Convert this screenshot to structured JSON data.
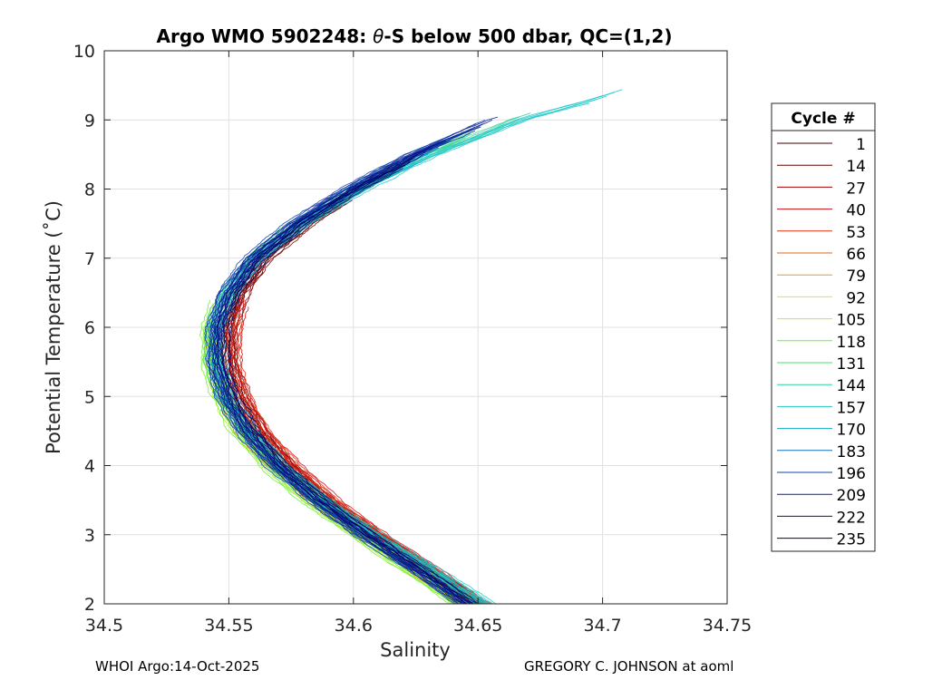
{
  "chart_data": {
    "type": "line",
    "title_prefix": "Argo WMO 5902248: ",
    "title_symbol": "θ",
    "title_suffix": "-S below 500 dbar,  QC=(1,2)",
    "xlabel": "Salinity",
    "ylabel": "Potential Temperature (˚C)",
    "xlim": [
      34.5,
      34.75
    ],
    "ylim": [
      2,
      10
    ],
    "xticks": [
      34.5,
      34.55,
      34.6,
      34.65,
      34.7,
      34.75
    ],
    "xtick_labels": [
      "34.5",
      "34.55",
      "34.6",
      "34.65",
      "34.7",
      "34.75"
    ],
    "yticks": [
      2,
      3,
      4,
      5,
      6,
      7,
      8,
      9,
      10
    ],
    "ytick_labels": [
      "2",
      "3",
      "4",
      "5",
      "6",
      "7",
      "8",
      "9",
      "10"
    ],
    "grid": true,
    "legend": {
      "title": "Cycle #",
      "placement": "outside-right",
      "entries": [
        "1",
        "14",
        "27",
        "40",
        "53",
        "66",
        "79",
        "92",
        "105",
        "118",
        "131",
        "144",
        "157",
        "170",
        "183",
        "196",
        "209",
        "222",
        "235"
      ],
      "colors": [
        "#3a0000",
        "#6a0000",
        "#a00000",
        "#cc1010",
        "#e03010",
        "#e06a10",
        "#d8a020",
        "#f0e020",
        "#b8f020",
        "#70ee30",
        "#40e070",
        "#30d0a0",
        "#20c8c8",
        "#10a8c8",
        "#1070c0",
        "#1040b0",
        "#0a2098",
        "#081080",
        "#000066"
      ]
    },
    "series": [
      {
        "name": "1",
        "cycle": 1,
        "s_offset": 0.001,
        "s_scale": 1.0,
        "t_max": 8.4
      },
      {
        "name": "14",
        "cycle": 14,
        "s_offset": 0.0025,
        "s_scale": 1.0,
        "t_max": 8.0
      },
      {
        "name": "27",
        "cycle": 27,
        "s_offset": 0.003,
        "s_scale": 1.0,
        "t_max": 7.0
      },
      {
        "name": "40",
        "cycle": 40,
        "s_offset": 0.0045,
        "s_scale": 1.0,
        "t_max": 6.5
      },
      {
        "name": "53",
        "cycle": 53,
        "s_offset": 0.004,
        "s_scale": 1.0,
        "t_max": 6.3
      },
      {
        "name": "66",
        "cycle": 66,
        "s_offset": -0.004,
        "s_scale": 1.0,
        "t_max": 5.2
      },
      {
        "name": "79",
        "cycle": 79,
        "s_offset": -0.003,
        "s_scale": 1.0,
        "t_max": 5.6
      },
      {
        "name": "92",
        "cycle": 92,
        "s_offset": -0.0035,
        "s_scale": 1.0,
        "t_max": 6.0
      },
      {
        "name": "105",
        "cycle": 105,
        "s_offset": -0.006,
        "s_scale": 1.0,
        "t_max": 6.2
      },
      {
        "name": "118",
        "cycle": 118,
        "s_offset": -0.007,
        "s_scale": 1.0,
        "t_max": 6.4
      },
      {
        "name": "131",
        "cycle": 131,
        "s_offset": -0.005,
        "s_scale": 1.05,
        "t_max": 8.9
      },
      {
        "name": "144",
        "cycle": 144,
        "s_offset": -0.004,
        "s_scale": 1.08,
        "t_max": 9.1
      },
      {
        "name": "157",
        "cycle": 157,
        "s_offset": -0.003,
        "s_scale": 1.1,
        "t_max": 9.45
      },
      {
        "name": "170",
        "cycle": 170,
        "s_offset": -0.002,
        "s_scale": 1.05,
        "t_max": 8.6
      },
      {
        "name": "183",
        "cycle": 183,
        "s_offset": -0.004,
        "s_scale": 1.02,
        "t_max": 8.8
      },
      {
        "name": "196",
        "cycle": 196,
        "s_offset": -0.005,
        "s_scale": 1.0,
        "t_max": 9.0
      },
      {
        "name": "209",
        "cycle": 209,
        "s_offset": -0.0035,
        "s_scale": 1.0,
        "t_max": 9.05
      },
      {
        "name": "222",
        "cycle": 222,
        "s_offset": -0.002,
        "s_scale": 1.0,
        "t_max": 8.7
      },
      {
        "name": "235",
        "cycle": 235,
        "s_offset": 0.0,
        "s_scale": 1.0,
        "t_max": 8.5
      }
    ],
    "mean_curve": {
      "theta": [
        2.0,
        2.5,
        3.0,
        3.5,
        4.0,
        4.5,
        5.0,
        5.5,
        6.0,
        6.5,
        7.0,
        7.5,
        8.0,
        8.5,
        9.0,
        9.45
      ],
      "salinity": [
        34.648,
        34.628,
        34.607,
        34.588,
        34.572,
        34.56,
        34.552,
        34.548,
        34.548,
        34.553,
        34.563,
        34.58,
        34.602,
        34.628,
        34.66,
        34.7
      ]
    }
  },
  "footer": {
    "left": "WHOI Argo:14-Oct-2025",
    "right": "GREGORY C. JOHNSON at aoml"
  }
}
